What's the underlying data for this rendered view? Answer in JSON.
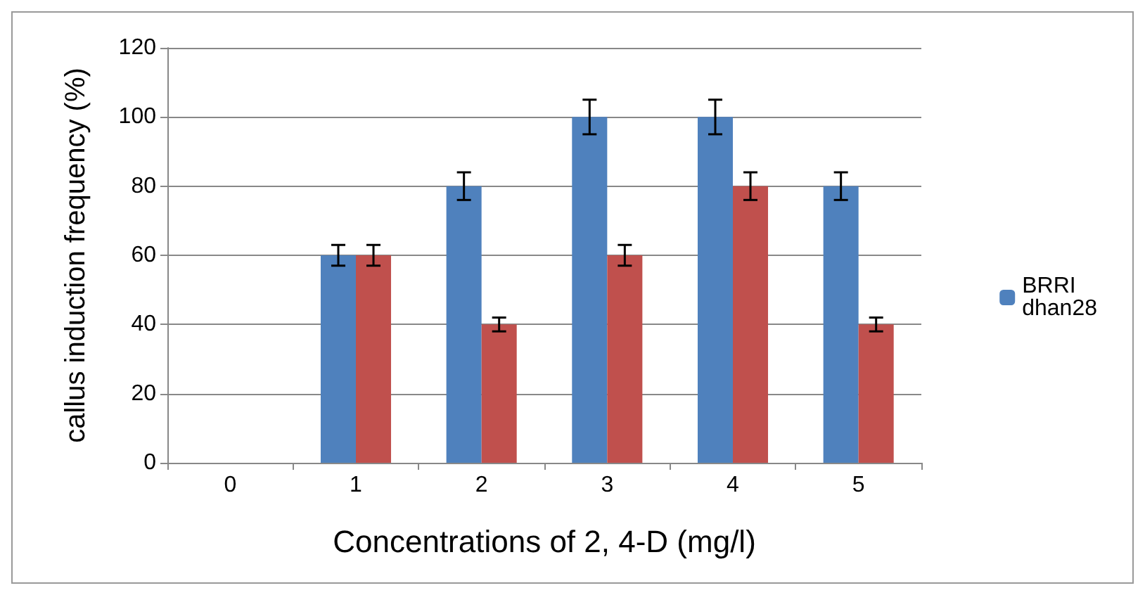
{
  "chart_data": {
    "type": "bar",
    "xlabel": "Concentrations of 2, 4-D (mg/l)",
    "ylabel": "callus induction frequency (%)",
    "categories": [
      "0",
      "1",
      "2",
      "3",
      "4",
      "5"
    ],
    "series": [
      {
        "name": "BRRI dhan28",
        "color": "#4f81bd",
        "values": [
          0,
          60,
          80,
          100,
          100,
          80
        ],
        "errors": [
          null,
          3,
          4,
          5,
          5,
          4
        ]
      },
      {
        "color": "#c0504d",
        "values": [
          0,
          60,
          40,
          60,
          80,
          40
        ],
        "errors": [
          null,
          3,
          2,
          3,
          4,
          2
        ]
      }
    ],
    "ylim": [
      0,
      120
    ],
    "yticks": [
      0,
      20,
      40,
      60,
      80,
      100,
      120
    ],
    "grid": "y",
    "legend": "right"
  }
}
